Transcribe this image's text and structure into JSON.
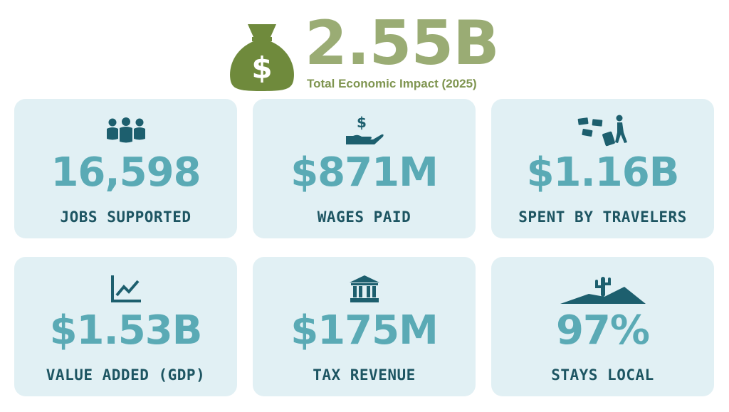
{
  "hero": {
    "value": "2.55B",
    "caption": "Total Economic Impact (2025)",
    "icon": "money-bag-icon"
  },
  "stats": [
    {
      "value": "16,598",
      "label": "JOBS SUPPORTED",
      "icon": "people-group-icon"
    },
    {
      "value": "$871M",
      "label": "WAGES PAID",
      "icon": "hand-dollar-icon"
    },
    {
      "value": "$1.16B",
      "label": "SPENT BY TRAVELERS",
      "icon": "traveler-money-icon"
    },
    {
      "value": "$1.53B",
      "label": "VALUE ADDED (GDP)",
      "icon": "line-chart-icon"
    },
    {
      "value": "$175M",
      "label": "TAX REVENUE",
      "icon": "bank-building-icon"
    },
    {
      "value": "97%",
      "label": "STAYS LOCAL",
      "icon": "desert-cactus-icon"
    }
  ],
  "colors": {
    "hero_bag": "#6f8a3c",
    "hero_value": "#9aac74",
    "hero_caption": "#7f9550",
    "card_background": "#e1f0f4",
    "stat_value": "#5aaab5",
    "stat_label": "#1d5562",
    "icon": "#1d5f6e"
  }
}
